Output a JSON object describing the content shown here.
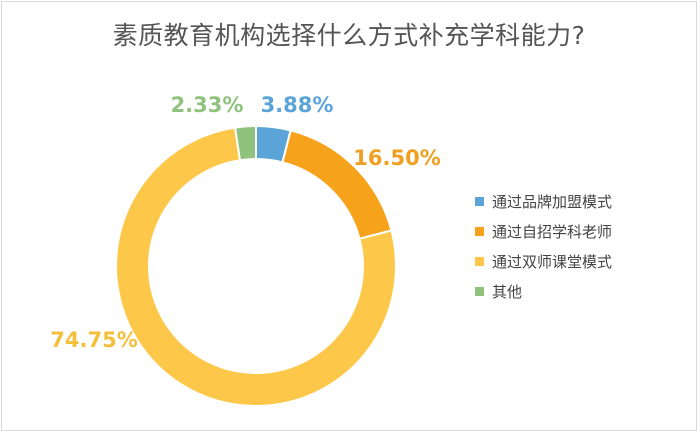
{
  "chart_data": {
    "type": "pie",
    "donut": true,
    "title": "素质教育机构选择什么方式补充学科能力?",
    "categories": [
      "通过品牌加盟模式",
      "通过自招学科老师",
      "通过双师课堂模式",
      "其他"
    ],
    "values": [
      3.88,
      16.5,
      74.75,
      2.33
    ],
    "value_labels": [
      "3.88%",
      "16.50%",
      "74.75%",
      "2.33%"
    ],
    "colors": [
      "#5ba4d7",
      "#f7a21b",
      "#fdc84a",
      "#8fc27d"
    ],
    "label_colors": [
      "#5ba4d7",
      "#f0a020",
      "#f5bf3c",
      "#8fc27d"
    ],
    "legend_position": "right",
    "start_angle_deg": 0,
    "direction": "clockwise"
  }
}
